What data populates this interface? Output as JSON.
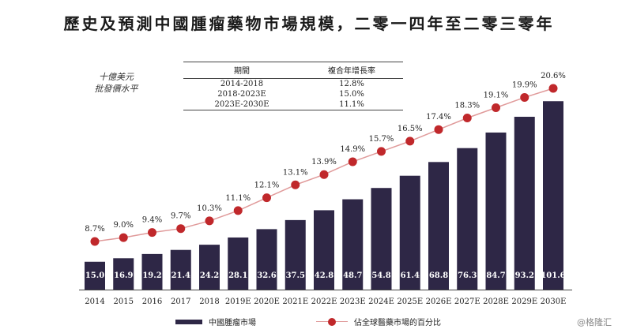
{
  "title": "歷史及預測中國腫瘤藥物市場規模，二零一四年至二零三零年",
  "unit_lines": [
    "十億美元",
    "批發價水平"
  ],
  "cagr_table": {
    "headers": [
      "期間",
      "複合年增長率"
    ],
    "rows": [
      {
        "period": "2014-2018",
        "rate": "12.8%"
      },
      {
        "period": "2018-2023E",
        "rate": "15.0%"
      },
      {
        "period": "2023E-2030E",
        "rate": "11.1%"
      }
    ]
  },
  "legend": {
    "bar": "中國腫瘤市場",
    "line": "佔全球醫藥市場的百分比"
  },
  "watermark": "@格隆汇",
  "colors": {
    "bar": "#2e2746",
    "line": "#e09a9a",
    "marker": "#c0282b"
  },
  "chart_data": {
    "type": "bar",
    "categories": [
      "2014",
      "2015",
      "2016",
      "2017",
      "2018",
      "2019E",
      "2020E",
      "2021E",
      "2022E",
      "2023E",
      "2024E",
      "2025E",
      "2026E",
      "2027E",
      "2028E",
      "2029E",
      "2030E"
    ],
    "series": [
      {
        "name": "中國腫瘤市場",
        "type": "bar",
        "unit": "十億美元",
        "values": [
          15.0,
          16.9,
          19.2,
          21.4,
          24.2,
          28.1,
          32.6,
          37.5,
          42.8,
          48.7,
          54.8,
          61.4,
          68.8,
          76.3,
          84.7,
          93.2,
          101.6
        ],
        "labels": [
          "15.0",
          "16.9",
          "19.2",
          "21.4",
          "24.2",
          "28.1",
          "32.6",
          "37.5",
          "42.8",
          "48.7",
          "54.8",
          "61.4",
          "68.8",
          "76.3",
          "84.7",
          "93.2",
          "101.6"
        ]
      },
      {
        "name": "佔全球醫藥市場的百分比",
        "type": "line",
        "unit": "%",
        "values": [
          8.7,
          9.0,
          9.4,
          9.7,
          10.3,
          11.1,
          12.1,
          13.1,
          13.9,
          14.9,
          15.7,
          16.5,
          17.4,
          18.3,
          19.1,
          19.9,
          20.6
        ],
        "labels": [
          "8.7%",
          "9.0%",
          "9.4%",
          "9.7%",
          "10.3%",
          "11.1%",
          "12.1%",
          "13.1%",
          "13.9%",
          "14.9%",
          "15.7%",
          "16.5%",
          "17.4%",
          "18.3%",
          "19.1%",
          "19.9%",
          "20.6%"
        ]
      }
    ],
    "legend_position": "bottom",
    "grid": false
  }
}
